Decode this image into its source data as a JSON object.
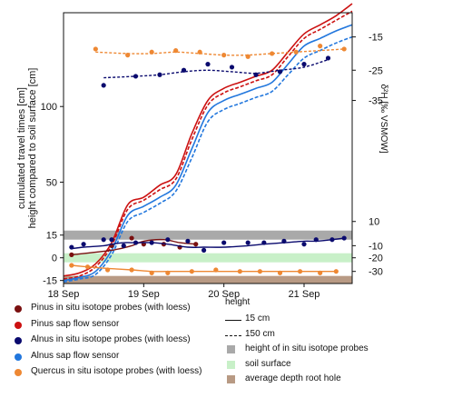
{
  "chart_data": {
    "type": "line",
    "x_axis": {
      "ticks": [
        "18 Sep",
        "19 Sep",
        "20 Sep",
        "21 Sep"
      ],
      "tick_positions": [
        0,
        1,
        2,
        3
      ],
      "range": [
        0,
        3.6
      ]
    },
    "y_left": {
      "label_lines": [
        "cumulated travel times [cm]",
        "height compared to soil surface [cm]"
      ],
      "ticks": [
        -15,
        0,
        15,
        50,
        100
      ],
      "range": [
        -17,
        162
      ]
    },
    "y_right": {
      "label": "δ²H [‰ VSMOW]",
      "ticks": [
        -30,
        -20,
        -10,
        10
      ],
      "upper_ticks": [
        -35,
        -25,
        -15
      ]
    },
    "bands": [
      {
        "name": "height of in situ isotope probes",
        "y_from": 12,
        "y_to": 18,
        "color": "#a9a9a9"
      },
      {
        "name": "soil surface",
        "y_from": -3,
        "y_to": 3,
        "color": "#c8f0c8"
      },
      {
        "name": "average depth root hole",
        "y_from": -17,
        "y_to": -12,
        "color": "#b89a84"
      }
    ],
    "series": [
      {
        "name": "Pinus sap flow sensor",
        "color": "#cc1111",
        "style": "solid",
        "x": [
          0,
          0.2,
          0.4,
          0.6,
          0.8,
          1.0,
          1.2,
          1.4,
          1.6,
          1.8,
          2.0,
          2.2,
          2.4,
          2.6,
          2.8,
          3.0,
          3.2,
          3.4,
          3.6
        ],
        "y": [
          -12,
          -10,
          -4,
          10,
          35,
          40,
          48,
          55,
          82,
          104,
          112,
          116,
          120,
          124,
          136,
          148,
          154,
          160,
          168
        ]
      },
      {
        "name": "Pinus sap flow sensor",
        "color": "#cc1111",
        "style": "dashed",
        "x": [
          0,
          0.2,
          0.4,
          0.6,
          0.8,
          1.0,
          1.2,
          1.4,
          1.6,
          1.8,
          2.0,
          2.2,
          2.4,
          2.6,
          2.8,
          3.0,
          3.2,
          3.4,
          3.6
        ],
        "y": [
          -14,
          -12,
          -6,
          8,
          32,
          38,
          45,
          52,
          78,
          101,
          109,
          113,
          117,
          121,
          133,
          145,
          151,
          157,
          163
        ]
      },
      {
        "name": "Alnus sap flow sensor",
        "color": "#2277dd",
        "style": "solid",
        "x": [
          0,
          0.2,
          0.4,
          0.6,
          0.8,
          1.0,
          1.2,
          1.4,
          1.6,
          1.8,
          2.0,
          2.2,
          2.4,
          2.6,
          2.8,
          3.0,
          3.2,
          3.4,
          3.6
        ],
        "y": [
          -15,
          -13,
          -9,
          5,
          28,
          34,
          40,
          48,
          72,
          96,
          104,
          108,
          112,
          116,
          128,
          140,
          145,
          150,
          154
        ]
      },
      {
        "name": "Alnus sap flow sensor",
        "color": "#2277dd",
        "style": "dashed",
        "x": [
          0,
          0.2,
          0.4,
          0.6,
          0.8,
          1.0,
          1.2,
          1.4,
          1.6,
          1.8,
          2.0,
          2.2,
          2.4,
          2.6,
          2.8,
          3.0,
          3.2,
          3.4,
          3.6
        ],
        "y": [
          -16,
          -14,
          -11,
          2,
          24,
          30,
          36,
          44,
          66,
          90,
          98,
          102,
          106,
          110,
          121,
          132,
          137,
          142,
          146
        ]
      }
    ],
    "probe_series": [
      {
        "name": "Pinus in situ isotope probes (with loess)",
        "color": "#7a1010",
        "points_x": [
          0.1,
          0.6,
          0.85,
          1.0,
          1.25,
          1.45,
          1.65
        ],
        "points_y": [
          2,
          8,
          13,
          9,
          9,
          7,
          9
        ],
        "curve_y": [
          2,
          5,
          8,
          11,
          12,
          10,
          9
        ]
      },
      {
        "name": "Alnus in situ isotope probes (with loess)",
        "color": "#0a0a6e",
        "points_x": [
          0.1,
          0.25,
          0.5,
          0.6,
          0.75,
          0.9,
          1.1,
          1.3,
          1.55,
          1.75,
          2.0,
          2.3,
          2.5,
          2.75,
          3.0,
          3.15,
          3.35,
          3.5
        ],
        "points_y": [
          7,
          9,
          12,
          12,
          8,
          10,
          10,
          12,
          11,
          5,
          10,
          10,
          10,
          11,
          9,
          12,
          12,
          13
        ],
        "curve_y": [
          6,
          7,
          8,
          9,
          10,
          10,
          10,
          9,
          7,
          7,
          7,
          8,
          9,
          10,
          11,
          11,
          12,
          13
        ]
      },
      {
        "name": "Quercus in situ isotope probes (with loess)",
        "color": "#ee8833",
        "points_x": [
          0.1,
          0.3,
          0.55,
          0.85,
          1.1,
          1.3,
          1.6,
          1.9,
          2.2,
          2.45,
          2.7,
          2.95,
          3.2,
          3.4
        ],
        "points_y": [
          -5,
          -6,
          -8,
          -8,
          -10,
          -10,
          -9,
          -8,
          -9,
          -9,
          -10,
          -9,
          -10,
          -9
        ],
        "curve_y": [
          -5,
          -6,
          -7,
          -8,
          -9,
          -9,
          -9,
          -9,
          -9,
          -9,
          -9,
          -9,
          -9,
          -9
        ]
      }
    ],
    "upper_probe_series": [
      {
        "name": "Alnus in situ isotope probes (with loess)",
        "color": "#0a0a6e",
        "points_x": [
          0.5,
          0.9,
          1.2,
          1.5,
          1.8,
          2.1,
          2.4,
          2.7,
          3.0,
          3.3
        ],
        "points_y": [
          114,
          120,
          121,
          124,
          128,
          126,
          121,
          123,
          128,
          132
        ],
        "curve_y": [
          119,
          120,
          121,
          123,
          124,
          123,
          122,
          124,
          126,
          131
        ]
      },
      {
        "name": "Quercus in situ isotope probes (with loess)",
        "color": "#ee8833",
        "points_x": [
          0.4,
          0.8,
          1.1,
          1.4,
          1.7,
          2.0,
          2.3,
          2.6,
          2.9,
          3.2,
          3.5
        ],
        "points_y": [
          138,
          134,
          136,
          137,
          136,
          134,
          133,
          135,
          136,
          140,
          138
        ],
        "curve_y": [
          136,
          135,
          135,
          136,
          135,
          134,
          134,
          135,
          136,
          137,
          138
        ]
      }
    ]
  },
  "legend": {
    "title": "height",
    "items_left": [
      {
        "label": "Pinus in situ isotope probes (with loess)",
        "color": "#7a1010"
      },
      {
        "label": "Pinus sap flow sensor",
        "color": "#cc1111"
      },
      {
        "label": "Alnus in situ isotope probes (with loess)",
        "color": "#0a0a6e"
      },
      {
        "label": "Alnus sap flow sensor",
        "color": "#2277dd"
      },
      {
        "label": "Quercus in situ isotope probes (with loess)",
        "color": "#ee8833"
      }
    ],
    "items_right": [
      {
        "label": "15 cm",
        "kind": "solid"
      },
      {
        "label": "150 cm",
        "kind": "dashed"
      },
      {
        "label": "height of in situ isotope probes",
        "kind": "swatch",
        "color": "#a9a9a9"
      },
      {
        "label": "soil surface",
        "kind": "swatch",
        "color": "#c8f0c8"
      },
      {
        "label": "average depth root hole",
        "kind": "swatch",
        "color": "#b89a84"
      }
    ]
  }
}
